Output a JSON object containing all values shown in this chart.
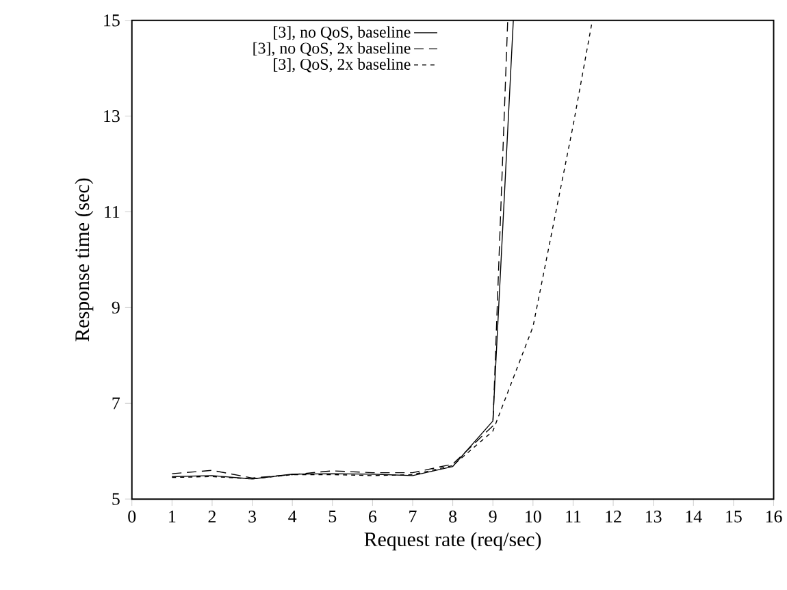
{
  "chart_data": {
    "type": "line",
    "xlabel": "Request rate (req/sec)",
    "ylabel": "Response time (sec)",
    "xlim": [
      0,
      16
    ],
    "xticks": [
      0,
      1,
      2,
      3,
      4,
      5,
      6,
      7,
      8,
      9,
      10,
      11,
      12,
      13,
      14,
      15,
      16
    ],
    "ylim": [
      5,
      15
    ],
    "yticks": [
      5,
      7,
      9,
      11,
      13,
      15
    ],
    "grid": false,
    "legend": "top",
    "marker": "none",
    "series": [
      {
        "name": "[3], no QoS, baseline",
        "color": "#000000",
        "line_style": "solid",
        "x": [
          1,
          2,
          3,
          4,
          5,
          6,
          7,
          8,
          9,
          9.51
        ],
        "values": [
          5.47,
          5.49,
          5.42,
          5.52,
          5.53,
          5.52,
          5.49,
          5.68,
          6.63,
          15
        ]
      },
      {
        "name": "[3], no QoS, 2x baseline",
        "color": "#000000",
        "line_style": "dashed",
        "x": [
          1,
          2,
          3,
          4,
          5,
          6,
          7,
          8,
          9,
          9.37
        ],
        "values": [
          5.53,
          5.6,
          5.44,
          5.51,
          5.59,
          5.55,
          5.55,
          5.73,
          6.53,
          15
        ]
      },
      {
        "name": "[3], QoS, 2x baseline",
        "color": "#000000",
        "line_style": "dotted",
        "x": [
          1,
          2,
          3,
          4,
          5,
          6,
          7,
          8,
          9,
          10,
          11,
          11.48
        ],
        "values": [
          5.45,
          5.47,
          5.42,
          5.51,
          5.51,
          5.49,
          5.51,
          5.7,
          6.42,
          8.6,
          12.8,
          15
        ]
      }
    ]
  }
}
